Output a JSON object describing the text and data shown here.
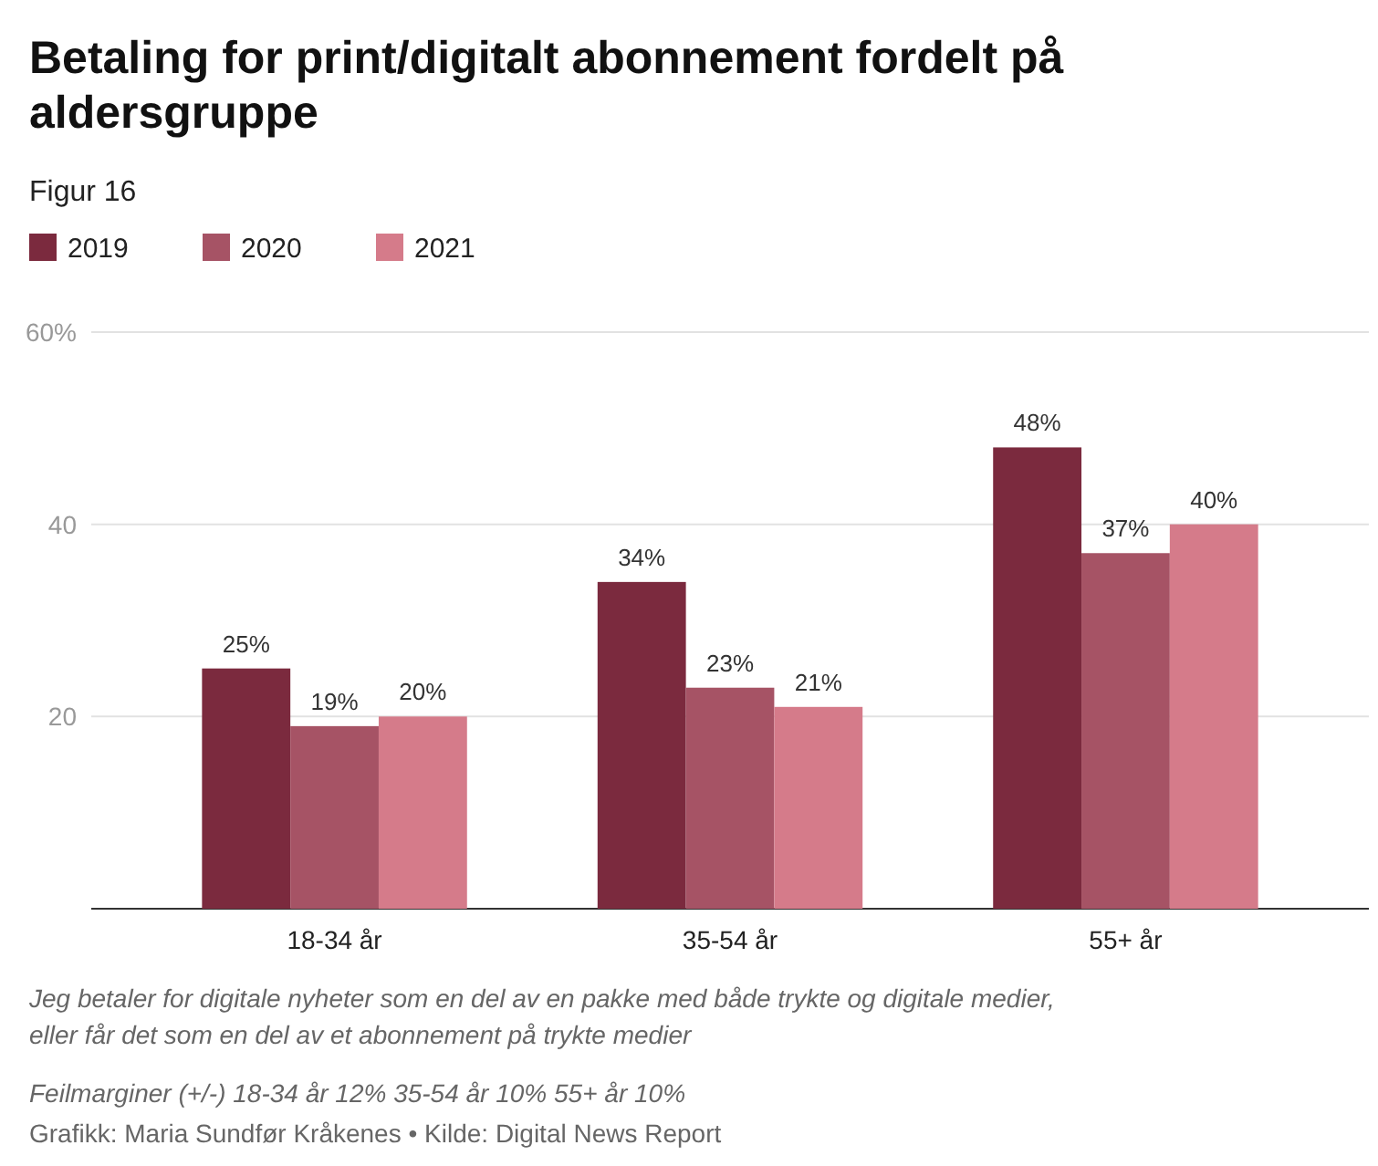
{
  "chart_data": {
    "type": "bar",
    "title": "Betaling for print/digitalt abonnement fordelt på aldersgruppe",
    "subtitle": "Figur 16",
    "categories": [
      "18-34 år",
      "35-54 år",
      "55+ år"
    ],
    "series": [
      {
        "name": "2019",
        "color": "#7b2a3e",
        "values": [
          25,
          34,
          48
        ]
      },
      {
        "name": "2020",
        "color": "#a65365",
        "values": [
          19,
          23,
          37
        ]
      },
      {
        "name": "2021",
        "color": "#d57b8a",
        "values": [
          20,
          21,
          40
        ]
      }
    ],
    "value_labels": [
      [
        "25%",
        "34%",
        "48%"
      ],
      [
        "19%",
        "23%",
        "37%"
      ],
      [
        "20%",
        "21%",
        "40%"
      ]
    ],
    "ylim": [
      0,
      60
    ],
    "yticks": [
      20,
      40,
      {
        "value": 60,
        "label": "60%"
      }
    ],
    "grid": "y",
    "legend": "top left",
    "annotations": [
      "Jeg betaler for digitale nyheter som en del av en pakke med både trykte og digitale medier, eller får det som en del av et abonnement på trykte medier",
      "Feilmarginer (+/-) 18-34 år 12% 35-54 år 10% 55+ år 10%",
      "Grafikk: Maria Sundfør Kråkenes • Kilde: Digital News Report"
    ]
  }
}
